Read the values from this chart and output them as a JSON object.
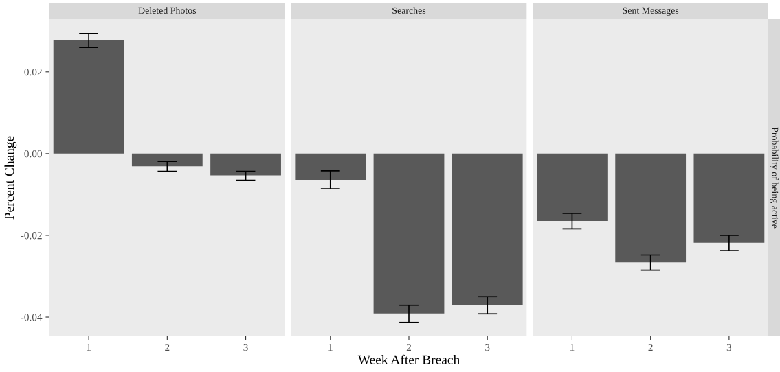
{
  "chart_data": [
    {
      "type": "bar",
      "title": "Deleted Photos",
      "ylabel": "Percent Change",
      "categories": [
        "1",
        "2",
        "3"
      ],
      "color": "#595959",
      "values": [
        0.0277,
        -0.0031,
        -0.0053
      ],
      "errors": [
        [
          0.026,
          0.0294
        ],
        [
          -0.0043,
          -0.0019
        ],
        [
          -0.0065,
          -0.0043
        ]
      ],
      "ylim": [
        -0.0447,
        0.0329
      ],
      "yticks": [
        0.02,
        {
          "value": 0,
          "label": "0.00"
        },
        -0.02,
        -0.04
      ]
    },
    {
      "type": "bar",
      "title": "Searches",
      "xlabel": "Week After Breach",
      "categories": [
        "1",
        "2",
        "3"
      ],
      "color": "#595959",
      "values": [
        -0.0064,
        -0.0391,
        -0.0371
      ],
      "errors": [
        [
          -0.0086,
          -0.0042
        ],
        [
          -0.0413,
          -0.0371
        ],
        [
          -0.0392,
          -0.035
        ]
      ],
      "ylim": [
        -0.0447,
        0.0329
      ],
      "tick_labels": "x"
    },
    {
      "type": "bar",
      "title": "Sent Messages",
      "annotations": [
        "Probability of being active"
      ],
      "categories": [
        "1",
        "2",
        "3"
      ],
      "color": "#595959",
      "values": [
        -0.0165,
        -0.0266,
        -0.0218
      ],
      "errors": [
        [
          -0.0184,
          -0.0146
        ],
        [
          -0.0285,
          -0.0248
        ],
        [
          -0.0237,
          -0.02
        ]
      ],
      "ylim": [
        -0.0447,
        0.0329
      ],
      "tick_labels": "x"
    }
  ]
}
